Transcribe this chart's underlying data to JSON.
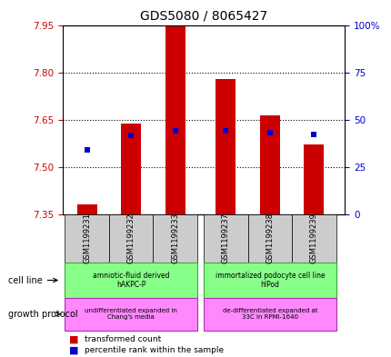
{
  "title": "GDS5080 / 8065427",
  "samples": [
    "GSM1199231",
    "GSM1199232",
    "GSM1199233",
    "GSM1199237",
    "GSM1199238",
    "GSM1199239"
  ],
  "bar_base": 7.35,
  "bar_tops": [
    7.381,
    7.638,
    7.952,
    7.778,
    7.662,
    7.572
  ],
  "percentile_ranks": [
    34,
    41.5,
    44,
    44,
    43,
    42
  ],
  "ylim": [
    7.35,
    7.95
  ],
  "ylim_right": [
    0,
    100
  ],
  "yticks_left": [
    7.35,
    7.5,
    7.65,
    7.8,
    7.95
  ],
  "yticks_right": [
    0,
    25,
    50,
    75,
    100
  ],
  "bar_color": "#cc0000",
  "blue_color": "#0000cc",
  "title_color": "#000000",
  "left_tick_color": "#cc0000",
  "right_tick_color": "#0000cc",
  "grid_color": "#000000",
  "bg_plot": "#ffffff",
  "cell_line_labels": [
    "amniotic-fluid derived\nhAKPC-P",
    "immortalized podocyte cell line\nhIPod"
  ],
  "growth_protocol_labels": [
    "undifferentiated expanded in\nChang's media",
    "de-differentiated expanded at\n33C in RPMI-1640"
  ],
  "growth_protocol_color": "#ff88ff",
  "cell_line_color": "#88ff88",
  "sample_bg_color": "#cccccc",
  "legend_red_label": "transformed count",
  "legend_blue_label": "percentile rank within the sample",
  "bar_width": 0.45
}
